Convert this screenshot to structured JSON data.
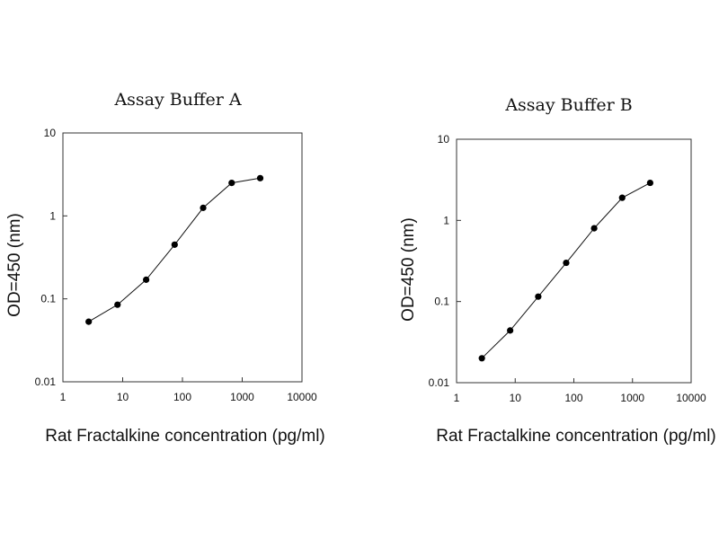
{
  "chart_data": [
    {
      "type": "line",
      "title": "Assay Buffer A",
      "xlabel": "Rat Fractalkine concentration (pg/ml)",
      "ylabel": "OD=450 (nm)",
      "xscale": "log",
      "yscale": "log",
      "xlim": [
        1,
        10000
      ],
      "ylim": [
        0.01,
        10
      ],
      "xticks": [
        "1",
        "10",
        "100",
        "1000",
        "10000"
      ],
      "yticks": [
        "0.01",
        "0.1",
        "1",
        "10"
      ],
      "grid": false,
      "series": [
        {
          "x": [
            2.7,
            8.2,
            24.7,
            74,
            222,
            667,
            2000
          ],
          "y": [
            0.053,
            0.085,
            0.17,
            0.45,
            1.25,
            2.5,
            2.85
          ]
        }
      ]
    },
    {
      "type": "line",
      "title": "Assay Buffer B",
      "xlabel": "Rat Fractalkine concentration (pg/ml)",
      "ylabel": "OD=450 (nm)",
      "xscale": "log",
      "yscale": "log",
      "xlim": [
        1,
        10000
      ],
      "ylim": [
        0.01,
        10
      ],
      "xticks": [
        "1",
        "10",
        "100",
        "1000",
        "10000"
      ],
      "yticks": [
        "0.01",
        "0.1",
        "1",
        "10"
      ],
      "grid": false,
      "series": [
        {
          "x": [
            2.7,
            8.2,
            24.7,
            74,
            222,
            667,
            2000
          ],
          "y": [
            0.02,
            0.044,
            0.115,
            0.3,
            0.8,
            1.9,
            2.9
          ]
        }
      ]
    }
  ]
}
